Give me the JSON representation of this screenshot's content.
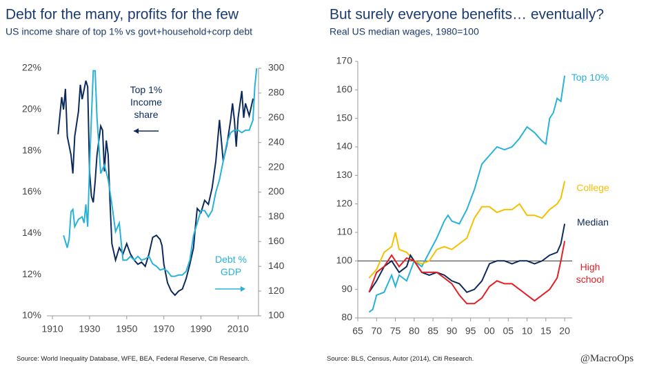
{
  "chart_data": [
    {
      "type": "line",
      "title": "Debt for the many, profits for the few",
      "subtitle": "US income share of top 1% vs govt+household+corp debt",
      "source": "Source: World Inequality Database, WFE, BEA, Federal Reserve, Citi Research.",
      "xlim": [
        1907,
        2021
      ],
      "xticks": [
        1910,
        1930,
        1950,
        1970,
        1990,
        2010
      ],
      "ylim": [
        10,
        22
      ],
      "yticks": [
        {
          "value": 10,
          "label": "10%"
        },
        {
          "value": 12,
          "label": "12%"
        },
        {
          "value": 14,
          "label": "14%"
        },
        {
          "value": 16,
          "label": "16%"
        },
        {
          "value": 18,
          "label": "18%"
        },
        {
          "value": 20,
          "label": "20%"
        },
        {
          "value": 22,
          "label": "22%"
        }
      ],
      "y2lim": [
        100,
        300
      ],
      "y2ticks": [
        100,
        120,
        140,
        160,
        180,
        200,
        220,
        240,
        260,
        280,
        300
      ],
      "annotations": [
        "Top 1% Income share",
        "Debt % GDP"
      ],
      "series": [
        {
          "name": "Top 1% Income share",
          "color": "#0b2a5b",
          "x": [
            1913,
            1915,
            1916,
            1917,
            1918,
            1920,
            1921,
            1922,
            1924,
            1925,
            1926,
            1928,
            1929,
            1930,
            1931,
            1932,
            1933,
            1934,
            1936,
            1937,
            1938,
            1939,
            1940,
            1941,
            1942,
            1944,
            1946,
            1948,
            1950,
            1952,
            1954,
            1956,
            1958,
            1960,
            1962,
            1964,
            1966,
            1968,
            1969,
            1970,
            1972,
            1974,
            1976,
            1978,
            1980,
            1982,
            1984,
            1986,
            1987,
            1988,
            1990,
            1992,
            1994,
            1996,
            1998,
            2000,
            2002,
            2004,
            2006,
            2007,
            2008,
            2009,
            2010,
            2012,
            2013,
            2014,
            2016,
            2018,
            2019
          ],
          "values": [
            18.8,
            20.6,
            20.0,
            21.0,
            18.7,
            17.8,
            16.9,
            18.7,
            19.9,
            21.2,
            20.5,
            21.4,
            21.1,
            17.0,
            15.8,
            15.5,
            16.5,
            17.8,
            19.2,
            19.0,
            17.0,
            18.5,
            17.8,
            15.5,
            13.5,
            12.7,
            13.3,
            13.0,
            13.5,
            13.0,
            12.7,
            12.5,
            12.6,
            12.4,
            13.0,
            13.8,
            13.9,
            13.7,
            13.4,
            12.5,
            11.6,
            11.2,
            11.0,
            11.2,
            11.3,
            11.8,
            12.5,
            13.3,
            14.3,
            15.2,
            15.0,
            15.6,
            15.4,
            16.2,
            17.5,
            19.5,
            17.5,
            18.3,
            19.5,
            20.3,
            19.5,
            18.2,
            19.6,
            20.9,
            19.6,
            20.3,
            19.7,
            20.5,
            20.5
          ]
        },
        {
          "name": "Debt % GDP",
          "color": "#27b2d9",
          "axis": "y2",
          "x": [
            1916,
            1918,
            1919,
            1920,
            1921,
            1922,
            1924,
            1926,
            1927,
            1928,
            1929,
            1930,
            1931,
            1932,
            1933,
            1934,
            1936,
            1938,
            1940,
            1942,
            1944,
            1946,
            1948,
            1950,
            1952,
            1954,
            1956,
            1958,
            1960,
            1962,
            1964,
            1966,
            1968,
            1970,
            1972,
            1974,
            1976,
            1978,
            1980,
            1982,
            1984,
            1986,
            1988,
            1990,
            1992,
            1994,
            1996,
            1998,
            2000,
            2002,
            2004,
            2006,
            2008,
            2010,
            2012,
            2014,
            2016,
            2018,
            2019,
            2020
          ],
          "values": [
            165,
            155,
            162,
            184,
            186,
            172,
            178,
            180,
            175,
            190,
            172,
            220,
            260,
            298,
            298,
            260,
            215,
            222,
            210,
            190,
            168,
            175,
            145,
            145,
            148,
            145,
            148,
            145,
            146,
            148,
            142,
            140,
            137,
            138,
            136,
            132,
            132,
            133,
            133,
            136,
            145,
            165,
            175,
            185,
            185,
            180,
            185,
            200,
            210,
            225,
            240,
            248,
            250,
            250,
            248,
            250,
            250,
            258,
            285,
            300
          ]
        }
      ]
    },
    {
      "type": "line",
      "title": "But surely everyone benefits… eventually?",
      "subtitle": "Real US median wages, 1980=100",
      "source": "Source: BLS, Census, Autor (2014), Citi Research.",
      "xlim": [
        1965,
        2022
      ],
      "xticks": [
        {
          "value": 1965,
          "label": "65"
        },
        {
          "value": 1970,
          "label": "70"
        },
        {
          "value": 1975,
          "label": "75"
        },
        {
          "value": 1980,
          "label": "80"
        },
        {
          "value": 1985,
          "label": "85"
        },
        {
          "value": 1990,
          "label": "90"
        },
        {
          "value": 1995,
          "label": "95"
        },
        {
          "value": 2000,
          "label": "00"
        },
        {
          "value": 2005,
          "label": "05"
        },
        {
          "value": 2010,
          "label": "10"
        },
        {
          "value": 2015,
          "label": "15"
        },
        {
          "value": 2020,
          "label": "20"
        }
      ],
      "ylim": [
        80,
        170
      ],
      "yticks": [
        80,
        90,
        100,
        110,
        120,
        130,
        140,
        150,
        160,
        170
      ],
      "reference_line": 100,
      "series": [
        {
          "name": "Top 10%",
          "color": "#27b2d9",
          "x": [
            1968,
            1969,
            1970,
            1972,
            1974,
            1975,
            1976,
            1978,
            1980,
            1982,
            1984,
            1986,
            1988,
            1989,
            1990,
            1992,
            1994,
            1996,
            1998,
            2000,
            2002,
            2004,
            2006,
            2008,
            2010,
            2012,
            2014,
            2015,
            2016,
            2017,
            2018,
            2019,
            2020
          ],
          "values": [
            82,
            83,
            88,
            89,
            95,
            91,
            95,
            93,
            100,
            98,
            103,
            108,
            114,
            116,
            114,
            113,
            118,
            125,
            134,
            137,
            140,
            139,
            140,
            143,
            147,
            145,
            142,
            141,
            150,
            152,
            157,
            156,
            165
          ]
        },
        {
          "name": "College",
          "color": "#f5c000",
          "x": [
            1968,
            1970,
            1972,
            1974,
            1975,
            1976,
            1978,
            1980,
            1982,
            1984,
            1986,
            1988,
            1990,
            1992,
            1994,
            1996,
            1998,
            2000,
            2002,
            2004,
            2006,
            2008,
            2010,
            2012,
            2014,
            2016,
            2018,
            2019,
            2020
          ],
          "values": [
            94,
            97,
            103,
            105,
            110,
            104,
            103,
            100,
            99,
            100,
            104,
            105,
            104,
            106,
            108,
            115,
            119,
            119,
            117,
            118,
            118,
            120,
            116,
            116,
            115,
            118,
            120,
            122,
            128
          ]
        },
        {
          "name": "Median",
          "color": "#0b2a5b",
          "x": [
            1968,
            1970,
            1972,
            1974,
            1976,
            1978,
            1979,
            1980,
            1982,
            1984,
            1986,
            1988,
            1990,
            1992,
            1994,
            1996,
            1998,
            2000,
            2002,
            2004,
            2006,
            2008,
            2010,
            2012,
            2014,
            2016,
            2018,
            2019,
            2020
          ],
          "values": [
            89,
            93,
            98,
            100,
            96,
            98,
            102,
            100,
            96,
            95,
            96,
            95,
            93,
            92,
            89,
            90,
            93,
            99,
            100,
            100,
            99,
            100,
            100,
            99,
            100,
            102,
            103,
            106,
            113
          ]
        },
        {
          "name": "High school",
          "color": "#e31e24",
          "x": [
            1968,
            1970,
            1972,
            1974,
            1976,
            1978,
            1980,
            1982,
            1984,
            1986,
            1988,
            1990,
            1992,
            1994,
            1996,
            1998,
            2000,
            2002,
            2004,
            2006,
            2008,
            2010,
            2012,
            2014,
            2016,
            2018,
            2019,
            2020
          ],
          "values": [
            89,
            96,
            98,
            102,
            98,
            101,
            100,
            96,
            96,
            96,
            94,
            92,
            88,
            85,
            85,
            87,
            91,
            93,
            92,
            92,
            90,
            88,
            86,
            88,
            90,
            94,
            100,
            107
          ]
        }
      ]
    }
  ],
  "watermark": "@MacroOps"
}
